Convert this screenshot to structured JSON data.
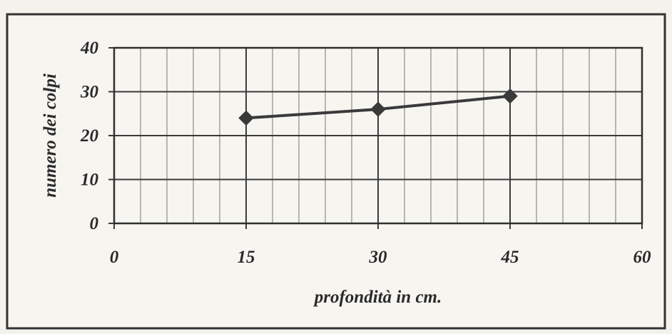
{
  "chart_data": {
    "type": "line",
    "title": "",
    "xlabel": "profondità in cm.",
    "ylabel": "numero dei colpi",
    "xlim": [
      0,
      60
    ],
    "ylim": [
      0,
      40
    ],
    "x_ticks": [
      "0",
      "15",
      "30",
      "45",
      "60"
    ],
    "y_ticks": [
      "0",
      "10",
      "20",
      "30",
      "40"
    ],
    "x_minor_step": 3,
    "y_minor_step": 10,
    "grid": true,
    "legend": "none",
    "series": [
      {
        "x": [
          15,
          30,
          45
        ],
        "values": [
          24,
          26,
          29
        ],
        "color": "#3a3a3a",
        "marker": "diamond"
      }
    ]
  }
}
